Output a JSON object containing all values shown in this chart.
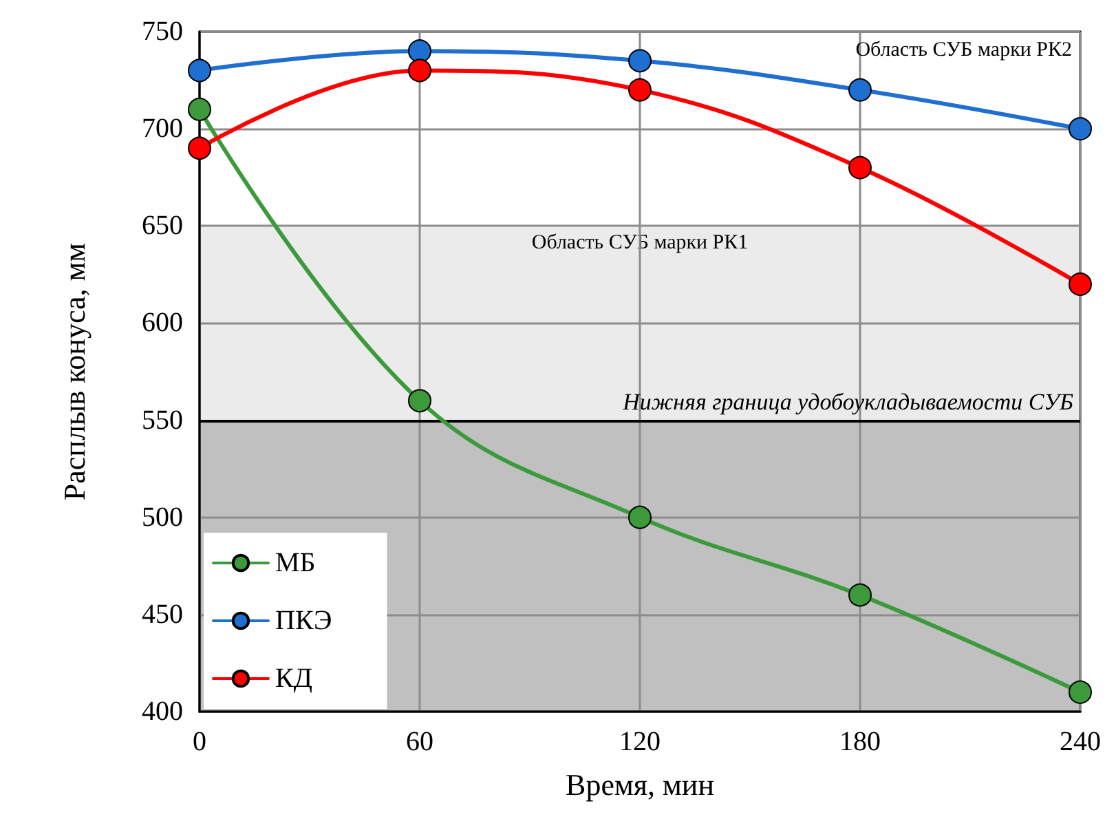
{
  "chart_data": {
    "type": "line",
    "xlabel": "Время, мин",
    "ylabel": "Расплыв конуса, мм",
    "x": [
      0,
      60,
      120,
      180,
      240
    ],
    "series": [
      {
        "name": "МБ",
        "color": "#3c9a3c",
        "values": [
          710,
          560,
          500,
          460,
          410
        ]
      },
      {
        "name": "ПКЭ",
        "color": "#1f6fd1",
        "values": [
          730,
          740,
          735,
          720,
          700
        ]
      },
      {
        "name": "КД",
        "color": "#ff0000",
        "values": [
          690,
          730,
          720,
          680,
          620
        ]
      }
    ],
    "xlim": [
      0,
      240
    ],
    "xticks": [
      0,
      60,
      120,
      180,
      240
    ],
    "ylim": [
      400,
      750
    ],
    "yticks": [
      400,
      450,
      500,
      550,
      600,
      650,
      700,
      750
    ],
    "bands": [
      {
        "axis": "y",
        "from": 550,
        "to": 650,
        "label": "Область СУБ марки РК1",
        "color": "#ebebeb"
      },
      {
        "axis": "y",
        "from": 400,
        "to": 550,
        "color": "#c0c0c0"
      }
    ],
    "ref_lines": [
      {
        "axis": "y",
        "value": 550,
        "label": "Нижняя граница удобоукладываемости СУБ",
        "color": "#000000",
        "line_style": "solid"
      }
    ],
    "annotations": [
      "Область СУБ марки РК2"
    ],
    "grid": true,
    "legend": "bottom left",
    "marker": "circle",
    "line_style": "solid"
  }
}
